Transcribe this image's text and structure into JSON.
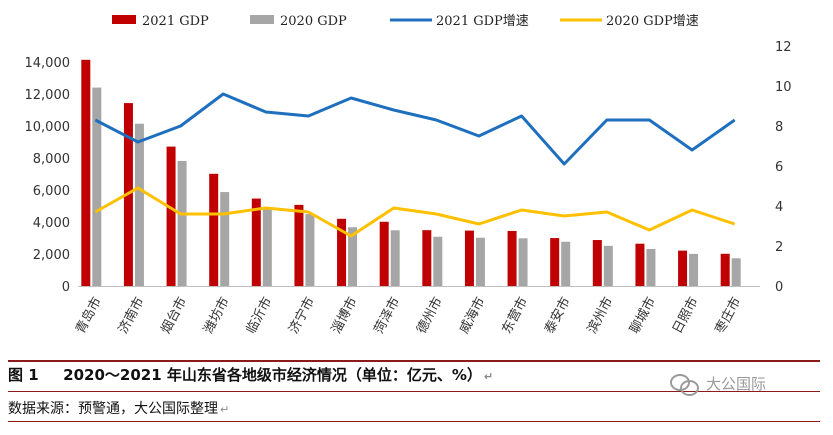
{
  "chart_data": {
    "type": "bar",
    "categories": [
      "青岛市",
      "济南市",
      "烟台市",
      "潍坊市",
      "临沂市",
      "济宁市",
      "淄博市",
      "菏泽市",
      "德州市",
      "威海市",
      "东营市",
      "泰安市",
      "滨州市",
      "聊城市",
      "日照市",
      "枣庄市"
    ],
    "series": [
      {
        "name": "2021 GDP",
        "type": "bar",
        "axis": "left",
        "color": "#c00000",
        "values": [
          14136,
          11432,
          8712,
          7011,
          5466,
          5070,
          4201,
          4015,
          3489,
          3463,
          3442,
          2996,
          2873,
          2643,
          2211,
          2013
        ]
      },
      {
        "name": "2020 GDP",
        "type": "bar",
        "axis": "left",
        "color": "#a6a6a6",
        "values": [
          12401,
          10141,
          7816,
          5872,
          4805,
          4494,
          3673,
          3483,
          3079,
          3017,
          2981,
          2766,
          2508,
          2316,
          2006,
          1733
        ]
      },
      {
        "name": "2021 GDP增速",
        "type": "line",
        "axis": "right",
        "color": "#1f6fbf",
        "values": [
          8.3,
          7.2,
          8.0,
          9.6,
          8.7,
          8.5,
          9.4,
          8.8,
          8.3,
          7.5,
          8.5,
          6.1,
          8.3,
          8.3,
          6.8,
          8.3
        ]
      },
      {
        "name": "2020 GDP增速",
        "type": "line",
        "axis": "right",
        "color": "#ffc000",
        "values": [
          3.7,
          4.9,
          3.6,
          3.6,
          3.9,
          3.7,
          2.5,
          3.9,
          3.6,
          3.1,
          3.8,
          3.5,
          3.7,
          2.8,
          3.8,
          3.1
        ]
      }
    ],
    "ylim_left": [
      0,
      14000
    ],
    "yticks_left": [
      "0",
      "2,000",
      "4,000",
      "6,000",
      "8,000",
      "10,000",
      "12,000",
      "14,000"
    ],
    "ylim_right": [
      0,
      12
    ],
    "yticks_right": [
      "0",
      "2",
      "4",
      "6",
      "8",
      "10",
      "12"
    ],
    "legend_position": "top",
    "grid": false
  },
  "caption": {
    "figure_label": "图 1",
    "title": "2020～2021 年山东省各地级市经济情况（单位：亿元、%）"
  },
  "source_note": "数据来源：预警通，大公国际整理",
  "watermark": {
    "text": "大公国际",
    "icon": "wechat-icon"
  },
  "colors": {
    "caption_rule": "#8b1a1a"
  }
}
